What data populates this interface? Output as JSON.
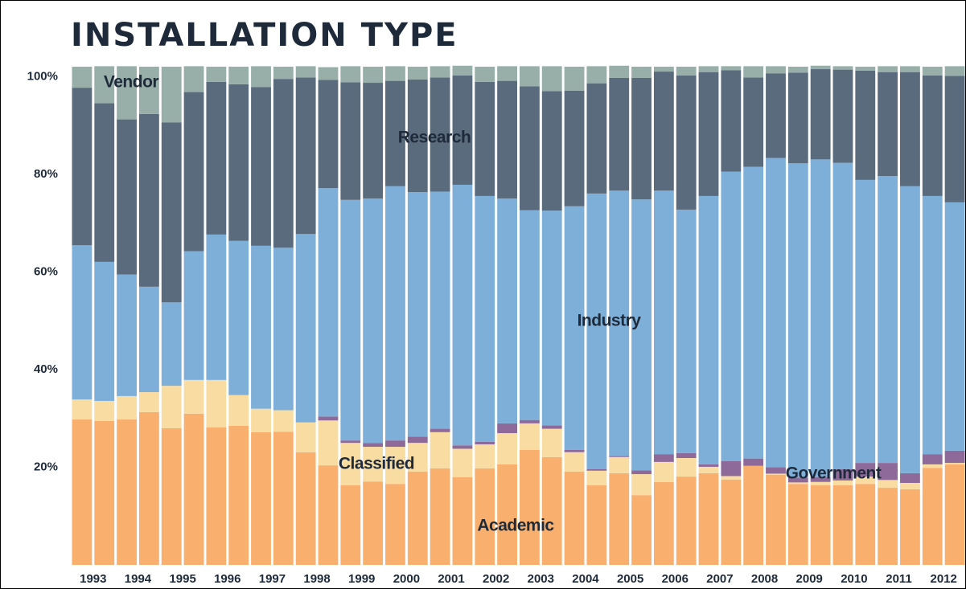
{
  "chart_data": {
    "type": "stacked_bar",
    "title": "INSTALLATION TYPE",
    "categories": [
      "1993",
      null,
      "1994",
      null,
      "1995",
      null,
      "1996",
      null,
      "1997",
      null,
      "1998",
      null,
      "1999",
      null,
      "2000",
      null,
      "2001",
      null,
      "2002",
      null,
      "2003",
      null,
      "2004",
      null,
      "2005",
      null,
      "2006",
      null,
      "2007",
      null,
      "2008",
      null,
      "2009",
      null,
      "2010",
      null,
      "2011",
      null,
      "2012",
      null
    ],
    "series": [
      {
        "name": "Academic",
        "color": "#f9b06e",
        "values": [
          29.8,
          29.5,
          29.8,
          31.3,
          28.0,
          31.0,
          28.2,
          28.5,
          27.2,
          27.3,
          23.1,
          20.4,
          16.3,
          17.1,
          16.6,
          19.1,
          19.8,
          18.0,
          19.8,
          20.6,
          23.6,
          22.1,
          19.1,
          16.3,
          18.8,
          14.3,
          17.0,
          18.1,
          18.8,
          17.5,
          20.3,
          18.5,
          16.6,
          16.3,
          16.3,
          16.6,
          15.8,
          15.5,
          19.9,
          20.6
        ]
      },
      {
        "name": "Classified",
        "color": "#f9dca2",
        "values": [
          4.1,
          4.1,
          4.8,
          4.1,
          8.7,
          6.9,
          9.7,
          6.3,
          4.8,
          4.4,
          6.1,
          9.2,
          8.7,
          7.1,
          7.6,
          5.9,
          7.4,
          5.8,
          4.9,
          6.4,
          5.4,
          5.8,
          4.0,
          3.0,
          3.3,
          4.3,
          4.1,
          3.8,
          1.3,
          0.7,
          0,
          0.2,
          0.3,
          0.7,
          1.0,
          1.5,
          1.6,
          1.3,
          0.7,
          0.3
        ]
      },
      {
        "name": "Government",
        "color": "#8e6a9b",
        "values": [
          0,
          0,
          0,
          0,
          0,
          0,
          0,
          0,
          0,
          0,
          0,
          0.8,
          0.5,
          0.8,
          1.3,
          1.3,
          0.7,
          0.7,
          0.5,
          2.0,
          0.7,
          0.7,
          0.5,
          0.3,
          0.2,
          0.8,
          1.6,
          1.0,
          0.5,
          3.1,
          1.5,
          1.3,
          1.0,
          1.0,
          2.3,
          2.8,
          3.5,
          2.0,
          2.1,
          2.5
        ]
      },
      {
        "name": "Industry",
        "color": "#7eafd8",
        "values": [
          31.6,
          28.5,
          24.9,
          21.6,
          17.1,
          26.4,
          29.8,
          31.6,
          33.4,
          33.3,
          38.6,
          46.8,
          49.3,
          50.1,
          52.1,
          50.1,
          48.6,
          53.4,
          50.4,
          46.1,
          43.0,
          44.0,
          49.9,
          56.5,
          54.4,
          55.5,
          54.0,
          49.9,
          55.0,
          59.3,
          59.8,
          63.4,
          64.4,
          65.1,
          62.8,
          58.0,
          58.8,
          58.8,
          52.9,
          50.9
        ]
      },
      {
        "name": "Research",
        "color": "#5a6b7e",
        "values": [
          32.3,
          32.5,
          31.8,
          35.4,
          36.9,
          32.6,
          31.3,
          32.1,
          32.5,
          34.6,
          32.1,
          22.2,
          24.1,
          23.7,
          21.6,
          23.1,
          23.4,
          22.4,
          23.4,
          24.1,
          25.4,
          24.5,
          23.7,
          22.6,
          23.1,
          24.9,
          24.4,
          27.5,
          25.4,
          20.8,
          18.3,
          17.3,
          18.6,
          18.5,
          19.1,
          22.4,
          21.3,
          23.4,
          24.7,
          25.9
        ]
      },
      {
        "name": "Vendor",
        "color": "#98aea8",
        "values": [
          4.3,
          7.6,
          10.9,
          9.7,
          11.4,
          5.3,
          3.1,
          3.6,
          4.3,
          2.5,
          2.3,
          2.6,
          3.3,
          3.3,
          3.0,
          2.6,
          2.3,
          2.0,
          3.1,
          3.0,
          4.1,
          5.1,
          4.9,
          3.5,
          2.5,
          2.3,
          1.0,
          1.8,
          1.2,
          0.8,
          2.3,
          1.5,
          1.2,
          0.7,
          0.7,
          0.8,
          1.2,
          1.2,
          1.8,
          2.0
        ]
      }
    ],
    "ylim": [
      0,
      102.1
    ],
    "yticks": [
      {
        "value": 20,
        "label": "20%"
      },
      {
        "value": 40,
        "label": "40%"
      },
      {
        "value": 60,
        "label": "60%"
      },
      {
        "value": 80,
        "label": "80%"
      },
      {
        "value": 100,
        "label": "100%"
      }
    ]
  }
}
